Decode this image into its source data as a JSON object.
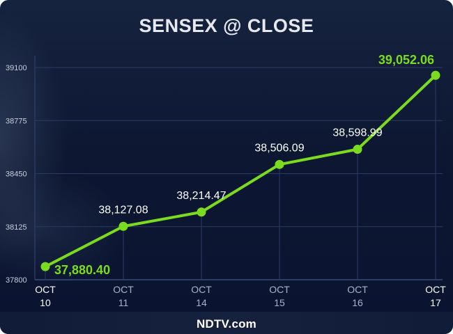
{
  "title": "SENSEX @ CLOSE",
  "brand": "NDTV.com",
  "colors": {
    "line": "#7bdc1f",
    "highlight_label": "#7bdc1f",
    "label": "#ffffff",
    "grid": "#2b3a63",
    "axis_text": "#c9cfdb"
  },
  "chart_data": {
    "type": "line",
    "categories": [
      "OCT 10",
      "OCT 11",
      "OCT 14",
      "OCT 15",
      "OCT 16",
      "OCT 17"
    ],
    "x_month": [
      "OCT",
      "OCT",
      "OCT",
      "OCT",
      "OCT",
      "OCT"
    ],
    "x_day": [
      "10",
      "11",
      "14",
      "15",
      "16",
      "17"
    ],
    "values": [
      37880.4,
      38127.08,
      38214.47,
      38506.09,
      38598.99,
      39052.06
    ],
    "data_labels": [
      "37,880.40",
      "38,127.08",
      "38,214.47",
      "38,506.09",
      "38,598.99",
      "39,052.06"
    ],
    "y_ticks": [
      37800,
      38125,
      38450,
      38775,
      39100
    ],
    "ylim": [
      37800,
      39100
    ],
    "grid": true
  }
}
